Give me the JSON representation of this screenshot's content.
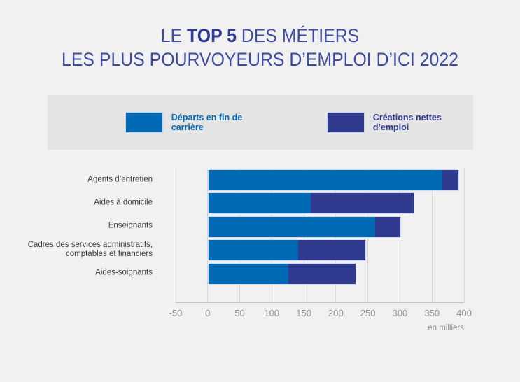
{
  "title": {
    "line1_prefix": "LE ",
    "line1_bold": "TOP 5",
    "line1_suffix": " DES MÉTIERS",
    "line2": "LES PLUS POURVOYEURS D’EMPLOI D’ICI 2022"
  },
  "legend": {
    "items": [
      {
        "label": "Départs en fin de carrière",
        "color": "#0069B4"
      },
      {
        "label": "Créations nettes d’emploi",
        "color": "#2F3A8F"
      }
    ]
  },
  "chart_data": {
    "type": "bar",
    "orientation": "horizontal",
    "stacked": true,
    "title": "Le top 5 des métiers les plus pourvoyeurs d’emploi d’ici 2022",
    "categories": [
      "Agents d’entretien",
      "Aides à domicile",
      "Enseignants",
      "Cadres des services administratifs,\ncomptables et financiers",
      "Aides-soignants"
    ],
    "series": [
      {
        "name": "Départs en fin de carrière",
        "color": "#0069B4",
        "values": [
          365,
          160,
          260,
          140,
          125
        ]
      },
      {
        "name": "Créations nettes d’emploi",
        "color": "#2F3A8F",
        "values": [
          25,
          160,
          40,
          105,
          105
        ]
      }
    ],
    "totals": [
      390,
      320,
      300,
      245,
      230
    ],
    "xlim": [
      -50,
      400
    ],
    "xticks": [
      -50,
      0,
      50,
      100,
      150,
      200,
      250,
      300,
      350,
      400
    ],
    "x_unit_label": "en milliers",
    "grid": "vertical",
    "legend_position": "top"
  },
  "colors": {
    "background": "#F1F1F2",
    "legend_band": "#E4E4E5",
    "title_text": "#3D4BA0",
    "category_text": "#3C3C3C",
    "tick_text": "#8E8E91",
    "gridline": "#D8D8DA"
  }
}
